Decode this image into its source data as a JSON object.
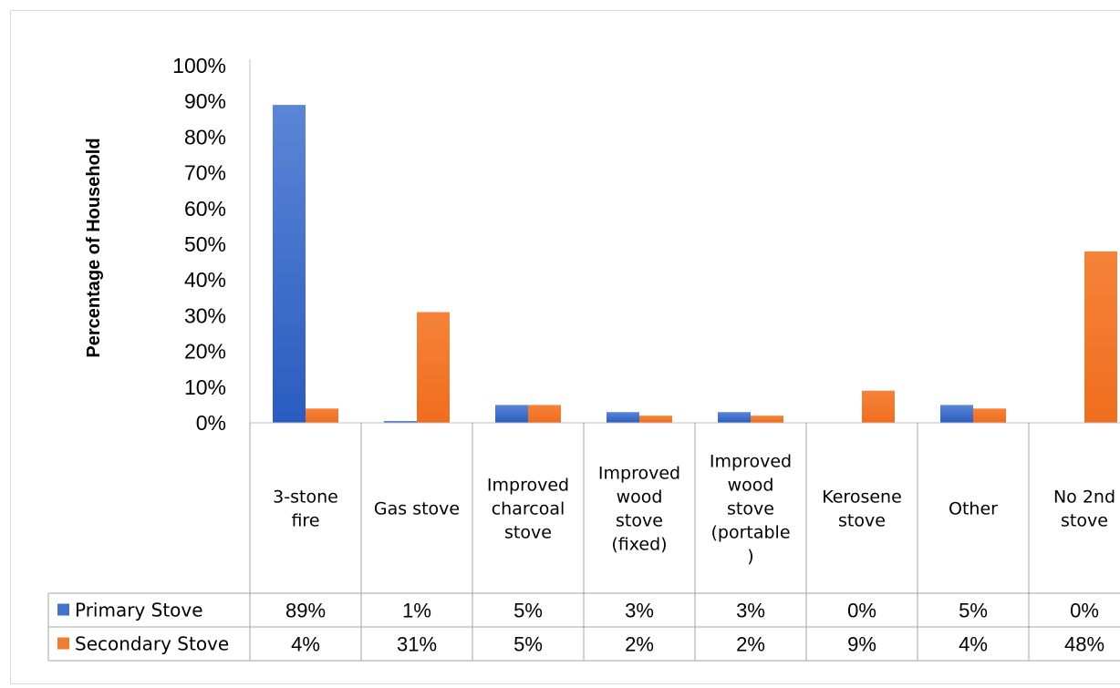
{
  "chart_data": {
    "type": "bar",
    "title": "",
    "xlabel": "",
    "ylabel": "Percentage of Household",
    "ylim": [
      0,
      100
    ],
    "yticks": [
      "0%",
      "10%",
      "20%",
      "30%",
      "40%",
      "50%",
      "60%",
      "70%",
      "80%",
      "90%",
      "100%"
    ],
    "categories": [
      [
        "3-stone",
        "fire"
      ],
      [
        "Gas stove"
      ],
      [
        "Improved",
        "charcoal",
        "stove"
      ],
      [
        "Improved",
        "wood",
        "stove",
        "(fixed)"
      ],
      [
        "Improved",
        "wood",
        "stove",
        "(portable",
        ")"
      ],
      [
        "Kerosene",
        "stove"
      ],
      [
        "Other"
      ],
      [
        "No 2nd",
        "stove"
      ]
    ],
    "series": [
      {
        "name": "Primary Stove",
        "color": "#4472c4",
        "values": [
          89,
          0.5,
          5,
          3,
          3,
          0,
          5,
          0
        ],
        "labels": [
          "89%",
          "1%",
          "5%",
          "3%",
          "3%",
          "0%",
          "5%",
          "0%"
        ]
      },
      {
        "name": "Secondary Stove",
        "color": "#ed7d31",
        "values": [
          4,
          31,
          5,
          2,
          2,
          9,
          4,
          48
        ],
        "labels": [
          "4%",
          "31%",
          "5%",
          "2%",
          "2%",
          "9%",
          "4%",
          "48%"
        ]
      }
    ],
    "grid": false,
    "legend": "data-table"
  }
}
